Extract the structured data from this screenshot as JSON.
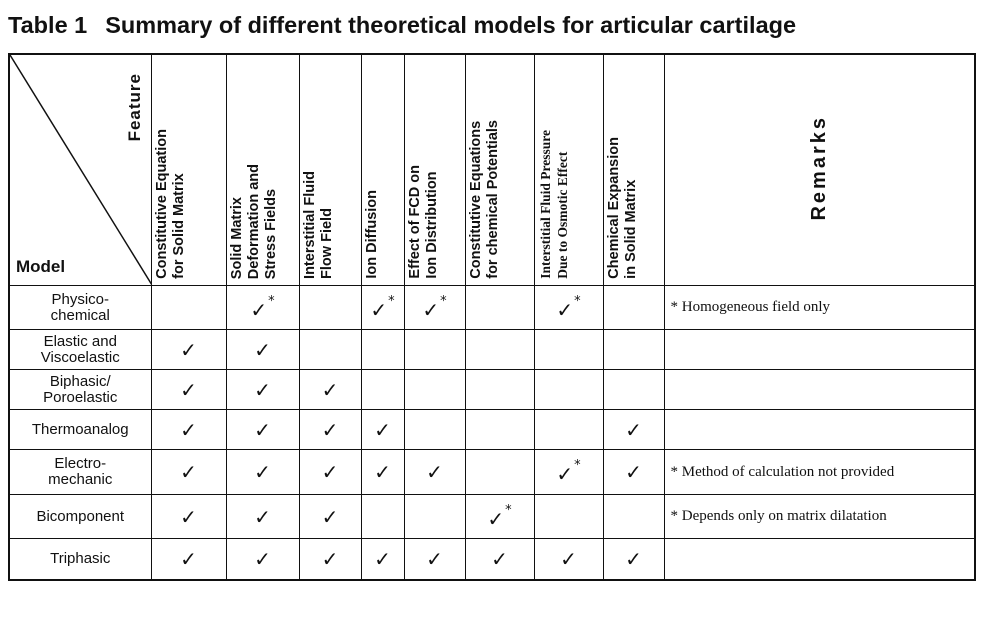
{
  "caption": {
    "number": "Table 1",
    "title": "Summary of different theoretical models for articular cartilage"
  },
  "header": {
    "feature_label": "Feature",
    "model_label": "Model",
    "features": [
      {
        "text": "Constitutive Equation\nfor Solid Matrix",
        "style": "sans"
      },
      {
        "text": "Solid Matrix\nDeformation and\nStress Fields",
        "style": "sans"
      },
      {
        "text": "Interstitial Fluid\nFlow Field",
        "style": "sans"
      },
      {
        "text": "Ion Diffusion",
        "style": "sans"
      },
      {
        "text": "Effect of FCD on\nIon Distribution",
        "style": "sans"
      },
      {
        "text": "Constitutive Equations\nfor chemical Potentials",
        "style": "sans"
      },
      {
        "text": "Interstitial Fluid Pressure\nDue to Osmotic Effect",
        "style": "serif"
      },
      {
        "text": "Chemical Expansion\nin Solid Matrix",
        "style": "sans"
      }
    ],
    "remarks_label": "Remarks"
  },
  "rows": [
    {
      "model": "Physico-\nchemical",
      "cells": [
        "",
        "✓*",
        "",
        "✓*",
        "✓*",
        "",
        "✓*",
        ""
      ],
      "remark": "* Homogeneous field only"
    },
    {
      "model": "Elastic and\nViscoelastic",
      "cells": [
        "✓",
        "✓",
        "",
        "",
        "",
        "",
        "",
        ""
      ],
      "remark": ""
    },
    {
      "model": "Biphasic/\nPoroelastic",
      "cells": [
        "✓",
        "✓",
        "✓",
        "",
        "",
        "",
        "",
        ""
      ],
      "remark": ""
    },
    {
      "model": "Thermoanalog",
      "cells": [
        "✓",
        "✓",
        "✓",
        "✓",
        "",
        "",
        "",
        "✓"
      ],
      "remark": ""
    },
    {
      "model": "Electro-\nmechanic",
      "cells": [
        "✓",
        "✓",
        "✓",
        "✓",
        "✓",
        "",
        "✓*",
        "✓"
      ],
      "remark": "* Method of calculation not provided"
    },
    {
      "model": "Bicomponent",
      "cells": [
        "✓",
        "✓",
        "✓",
        "",
        "",
        "✓*",
        "",
        ""
      ],
      "remark": "* Depends only on matrix dilatation"
    },
    {
      "model": "Triphasic",
      "cells": [
        "✓",
        "✓",
        "✓",
        "✓",
        "✓",
        "✓",
        "✓",
        "✓"
      ],
      "remark": ""
    }
  ]
}
